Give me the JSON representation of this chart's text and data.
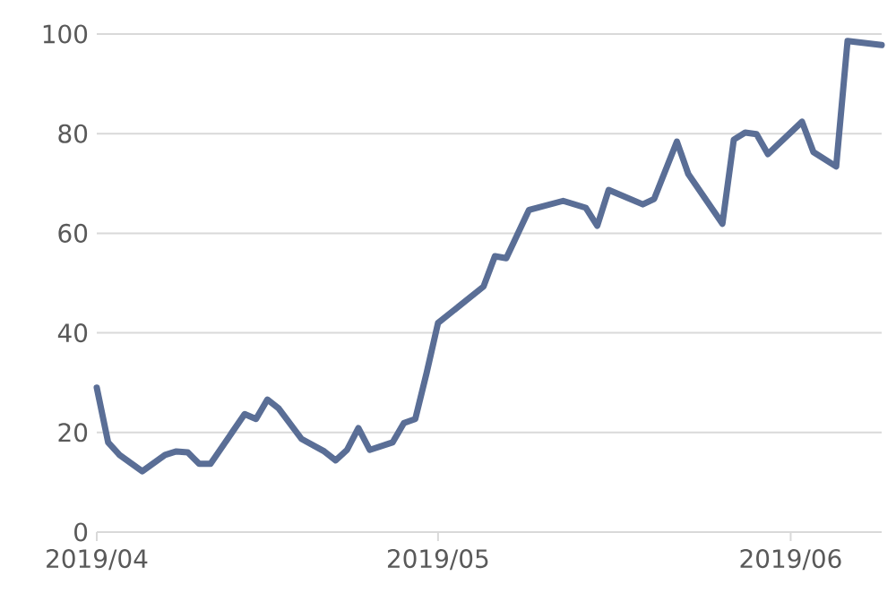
{
  "chart_data": {
    "type": "line",
    "x": [
      "2019-04-01",
      "2019-04-02",
      "2019-04-03",
      "2019-04-05",
      "2019-04-07",
      "2019-04-08",
      "2019-04-09",
      "2019-04-10",
      "2019-04-11",
      "2019-04-14",
      "2019-04-15",
      "2019-04-16",
      "2019-04-17",
      "2019-04-19",
      "2019-04-21",
      "2019-04-22",
      "2019-04-23",
      "2019-04-24",
      "2019-04-25",
      "2019-04-27",
      "2019-04-28",
      "2019-04-29",
      "2019-04-30",
      "2019-05-01",
      "2019-05-05",
      "2019-05-06",
      "2019-05-07",
      "2019-05-09",
      "2019-05-12",
      "2019-05-14",
      "2019-05-15",
      "2019-05-16",
      "2019-05-19",
      "2019-05-20",
      "2019-05-22",
      "2019-05-23",
      "2019-05-26",
      "2019-05-27",
      "2019-05-28",
      "2019-05-29",
      "2019-05-30",
      "2019-06-02",
      "2019-06-03",
      "2019-06-05",
      "2019-06-06",
      "2019-06-09"
    ],
    "values": [
      29,
      18,
      15.5,
      12.2,
      15.5,
      16.2,
      16,
      13.7,
      13.7,
      23.7,
      22.7,
      26.6,
      24.8,
      18.7,
      16.2,
      14.4,
      16.5,
      20.9,
      16.5,
      18,
      21.9,
      22.7,
      32,
      42,
      49.3,
      55.4,
      55,
      64.7,
      66.5,
      65.1,
      61.5,
      68.7,
      65.8,
      66.9,
      78.4,
      71.9,
      61.9,
      78.8,
      80.2,
      79.9,
      75.9,
      82.4,
      76.3,
      73.4,
      98.6,
      97.8
    ],
    "color": "#5a6e96",
    "xlim": [
      "2019-04-01",
      "2019-06-09"
    ],
    "xticks": [
      {
        "value": "2019-04-01",
        "label": "2019/04"
      },
      {
        "value": "2019-05-01",
        "label": "2019/05"
      },
      {
        "value": "2019-06-01",
        "label": "2019/06"
      }
    ],
    "ylim": [
      0,
      100
    ],
    "yticks": [
      0,
      20,
      40,
      60,
      80,
      100
    ],
    "grid": "y",
    "line_style": "solid"
  }
}
